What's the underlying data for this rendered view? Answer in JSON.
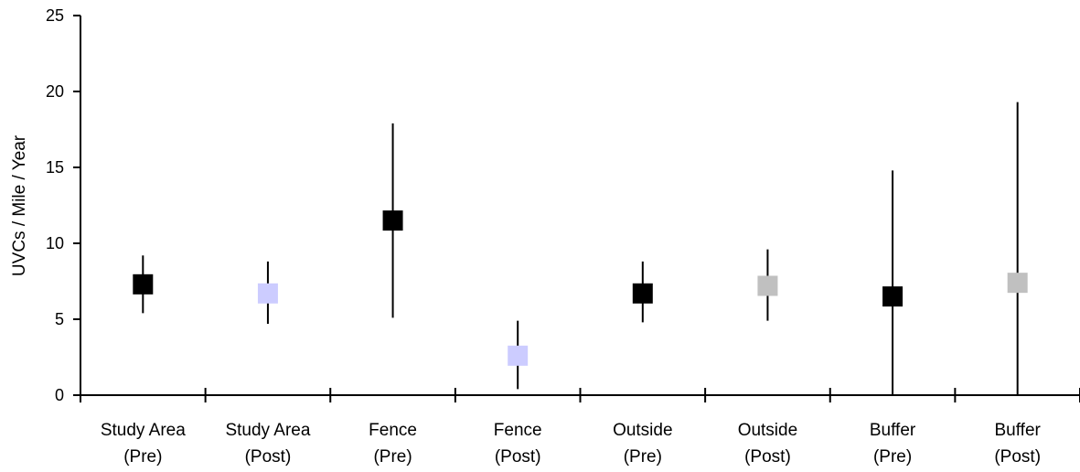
{
  "chart_data": {
    "type": "scatter",
    "title": "",
    "xlabel": "",
    "ylabel": "UVCs / Mile / Year",
    "ylim": [
      0,
      25
    ],
    "yticks": [
      0,
      5,
      10,
      15,
      20,
      25
    ],
    "grid": false,
    "legend": "none",
    "categories": [
      {
        "line1": "Study Area",
        "line2": "(Pre)"
      },
      {
        "line1": "Study Area",
        "line2": "(Post)"
      },
      {
        "line1": "Fence",
        "line2": "(Pre)"
      },
      {
        "line1": "Fence",
        "line2": "(Post)"
      },
      {
        "line1": "Outside",
        "line2": "(Pre)"
      },
      {
        "line1": "Outside",
        "line2": "(Post)"
      },
      {
        "line1": "Buffer",
        "line2": "(Pre)"
      },
      {
        "line1": "Buffer",
        "line2": "(Post)"
      }
    ],
    "points": [
      {
        "value": 7.3,
        "low": 5.4,
        "high": 9.2,
        "color": "#000000"
      },
      {
        "value": 6.7,
        "low": 4.7,
        "high": 8.8,
        "color": "#ccccff"
      },
      {
        "value": 11.5,
        "low": 5.1,
        "high": 17.9,
        "color": "#000000"
      },
      {
        "value": 2.6,
        "low": 0.4,
        "high": 4.9,
        "color": "#ccccff"
      },
      {
        "value": 6.7,
        "low": 4.8,
        "high": 8.8,
        "color": "#000000"
      },
      {
        "value": 7.2,
        "low": 4.9,
        "high": 9.6,
        "color": "#c0c0c0"
      },
      {
        "value": 6.5,
        "low": 0,
        "high": 14.8,
        "color": "#000000"
      },
      {
        "value": 7.4,
        "low": 0,
        "high": 19.3,
        "color": "#c0c0c0"
      }
    ]
  }
}
